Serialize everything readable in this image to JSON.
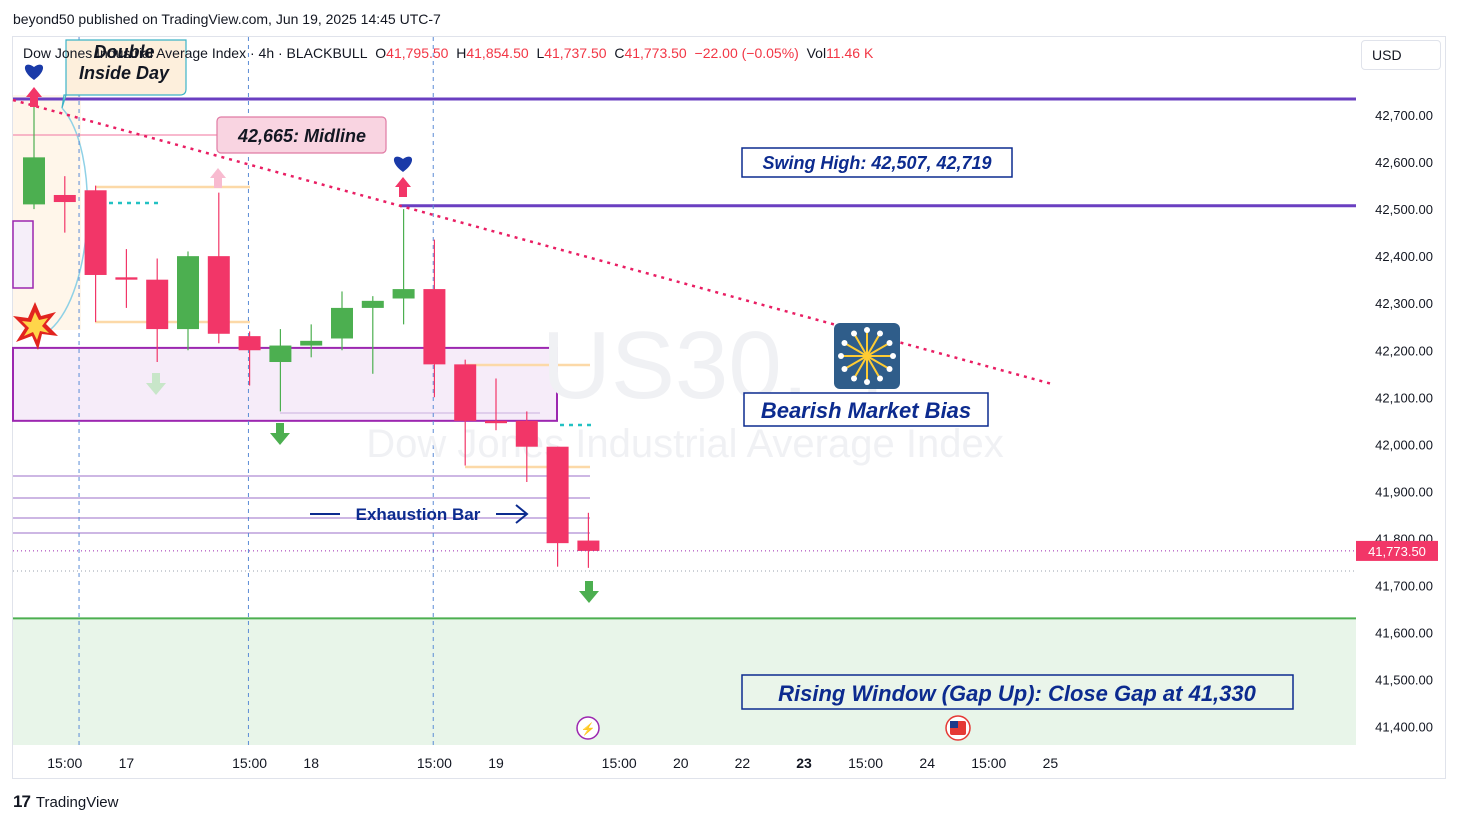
{
  "header": {
    "published": "beyond50 published on TradingView.com, Jun 19, 2025 14:45 UTC-7"
  },
  "legend": {
    "symbol": "Dow Jones Industrial Average Index · 4h · BLACKBULL",
    "o_label": "O",
    "o_value": "41,795.50",
    "h_label": "H",
    "h_value": "41,854.50",
    "l_label": "L",
    "l_value": "41,737.50",
    "c_label": "C",
    "c_value": "41,773.50",
    "change": "−22.00 (−0.05%)",
    "vol_label": "Vol",
    "vol_value": "11.46 K"
  },
  "currency_button": "USD",
  "footer": {
    "brand": "TradingView",
    "logo_glyph": "17"
  },
  "watermark": {
    "ticker": "US30, 4",
    "name": "Dow Jones Industrial Average Index"
  },
  "colors": {
    "up": "#4caf50",
    "down": "#f23668",
    "purple": "#6a3fc1",
    "navy": "#0c2b8f",
    "trend": "#e91e63",
    "green_zone": "#e8f5e9",
    "green_line": "#4caf50",
    "zone": "#9c27b0"
  },
  "chart_data": {
    "type": "candlestick",
    "timeframe": "4h",
    "y_ticks": [
      "42,700.00",
      "42,600.00",
      "42,500.00",
      "42,400.00",
      "42,300.00",
      "42,200.00",
      "42,100.00",
      "42,000.00",
      "41,900.00",
      "41,800.00",
      "41,700.00",
      "41,600.00",
      "41,500.00",
      "41,400.00"
    ],
    "ylim": [
      41360,
      42840
    ],
    "x_ticks": [
      {
        "i": 1,
        "label": "15:00"
      },
      {
        "i": 3,
        "label": "17"
      },
      {
        "i": 7,
        "label": "15:00"
      },
      {
        "i": 9,
        "label": "18"
      },
      {
        "i": 13,
        "label": "15:00"
      },
      {
        "i": 15,
        "label": "19"
      },
      {
        "i": 19,
        "label": "15:00"
      },
      {
        "i": 21,
        "label": "20"
      },
      {
        "i": 23,
        "label": "22"
      },
      {
        "i": 25,
        "label": "23"
      },
      {
        "i": 27,
        "label": "15:00"
      },
      {
        "i": 29,
        "label": "24"
      },
      {
        "i": 31,
        "label": "15:00"
      },
      {
        "i": 33,
        "label": "25"
      }
    ],
    "day_separators": [
      1.3,
      6.8,
      12.8
    ],
    "candles": [
      {
        "i": 0,
        "o": 42510,
        "h": 42720,
        "l": 42500,
        "c": 42610
      },
      {
        "i": 1,
        "o": 42530,
        "h": 42570,
        "l": 42450,
        "c": 42515
      },
      {
        "i": 2,
        "o": 42540,
        "h": 42550,
        "l": 42260,
        "c": 42360
      },
      {
        "i": 3,
        "o": 42355,
        "h": 42415,
        "l": 42290,
        "c": 42350
      },
      {
        "i": 4,
        "o": 42350,
        "h": 42395,
        "l": 42175,
        "c": 42245
      },
      {
        "i": 5,
        "o": 42245,
        "h": 42410,
        "l": 42200,
        "c": 42400
      },
      {
        "i": 6,
        "o": 42400,
        "h": 42535,
        "l": 42215,
        "c": 42235
      },
      {
        "i": 7,
        "o": 42230,
        "h": 42240,
        "l": 42125,
        "c": 42200
      },
      {
        "i": 8,
        "o": 42175,
        "h": 42245,
        "l": 42070,
        "c": 42210
      },
      {
        "i": 9,
        "o": 42210,
        "h": 42255,
        "l": 42185,
        "c": 42220
      },
      {
        "i": 10,
        "o": 42225,
        "h": 42325,
        "l": 42200,
        "c": 42290
      },
      {
        "i": 11,
        "o": 42290,
        "h": 42315,
        "l": 42150,
        "c": 42305
      },
      {
        "i": 12,
        "o": 42310,
        "h": 42500,
        "l": 42255,
        "c": 42330
      },
      {
        "i": 13,
        "o": 42330,
        "h": 42435,
        "l": 42100,
        "c": 42170
      },
      {
        "i": 14,
        "o": 42170,
        "h": 42180,
        "l": 41955,
        "c": 42050
      },
      {
        "i": 15,
        "o": 42050,
        "h": 42140,
        "l": 42030,
        "c": 42045
      },
      {
        "i": 16,
        "o": 42050,
        "h": 42070,
        "l": 41920,
        "c": 41995
      },
      {
        "i": 17,
        "o": 41995,
        "h": 41995,
        "l": 41740,
        "c": 41790
      },
      {
        "i": 18,
        "o": 41795.5,
        "h": 41854.5,
        "l": 41737.5,
        "c": 41773.5
      }
    ],
    "last_price": 41773.5,
    "last_price_label": "41,773.50",
    "annotations": [
      {
        "text": "Double\nInside Day"
      },
      {
        "text": "42,665: Midline",
        "y": 42665
      },
      {
        "text": "Swing High: 42,507, 42,719",
        "y_values": [
          42507,
          42719
        ]
      },
      {
        "text": "Bearish Market Bias"
      },
      {
        "text": "Exhaustion Bar"
      },
      {
        "text": "Rising Window (Gap Up): Close Gap at 41,330",
        "y": 41330
      }
    ],
    "horizontal_levels": [
      42719,
      42507,
      41630
    ],
    "supply_zone": {
      "top": 42205,
      "bottom": 42050
    },
    "trendline": {
      "from": {
        "i": -0.3,
        "y": 42710
      },
      "to": {
        "i": 22.5,
        "y": 42130
      }
    }
  }
}
